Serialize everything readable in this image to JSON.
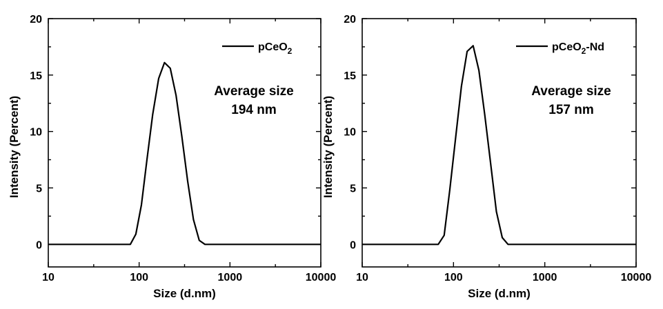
{
  "chart_data": [
    {
      "type": "line",
      "title": "",
      "xlabel": "Size (d.nm)",
      "ylabel": "Intensity (Percent)",
      "xscale": "log",
      "xlim": [
        10,
        10000
      ],
      "ylim": [
        -2,
        20
      ],
      "x_ticks": [
        "10",
        "100",
        "1000",
        "10000"
      ],
      "y_ticks": [
        "0",
        "5",
        "10",
        "15",
        "20"
      ],
      "grid": false,
      "legend_position": "top-right",
      "annotation": [
        "Average size",
        "194 nm"
      ],
      "series": [
        {
          "name": "pCeO2",
          "name_base": "pCeO",
          "name_sub": "2",
          "name_suffix": "",
          "x": [
            10,
            80,
            92,
            106,
            122,
            141,
            164,
            190,
            220,
            255,
            295,
            342,
            396,
            459,
            531,
            615,
            10000
          ],
          "y": [
            0,
            0,
            0.9,
            3.5,
            7.5,
            11.5,
            14.7,
            16.1,
            15.6,
            13.2,
            9.6,
            5.6,
            2.2,
            0.35,
            0,
            0,
            0
          ]
        }
      ]
    },
    {
      "type": "line",
      "title": "",
      "xlabel": "Size (d.nm)",
      "ylabel": "Intensity (Percent)",
      "xscale": "log",
      "xlim": [
        10,
        10000
      ],
      "ylim": [
        -2,
        20
      ],
      "x_ticks": [
        "10",
        "100",
        "1000",
        "10000"
      ],
      "y_ticks": [
        "0",
        "5",
        "10",
        "15",
        "20"
      ],
      "grid": false,
      "legend_position": "top-right",
      "annotation": [
        "Average size",
        "157 nm"
      ],
      "series": [
        {
          "name": "pCeO2-Nd",
          "name_base": "pCeO",
          "name_sub": "2",
          "name_suffix": "-Nd",
          "x": [
            10,
            68,
            79,
            91,
            106,
            122,
            141,
            164,
            190,
            220,
            255,
            295,
            342,
            396,
            10000
          ],
          "y": [
            0,
            0,
            0.8,
            4.8,
            9.6,
            14.0,
            17.1,
            17.6,
            15.4,
            11.5,
            7.2,
            2.9,
            0.6,
            0,
            0
          ]
        }
      ]
    }
  ]
}
